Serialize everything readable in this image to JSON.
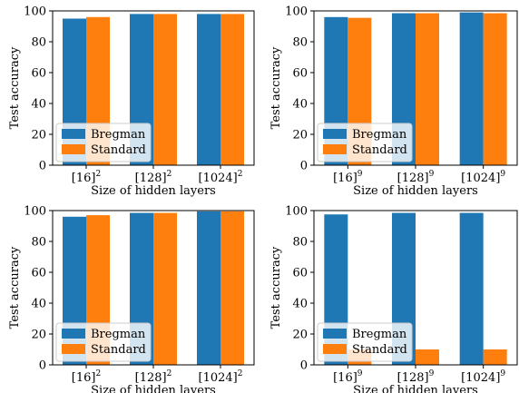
{
  "chart_data": [
    {
      "type": "bar",
      "categories": [
        [
          "[16]",
          "2"
        ],
        [
          "[128]",
          "2"
        ],
        [
          "[1024]",
          "2"
        ]
      ],
      "series": [
        {
          "name": "Bregman",
          "values": [
            95,
            98,
            98
          ]
        },
        {
          "name": "Standard",
          "values": [
            96,
            98,
            98
          ]
        }
      ],
      "xlabel": "Size of hidden layers",
      "ylabel": "Test accuracy",
      "ylim": [
        0,
        100
      ],
      "yticks": [
        "0",
        "20",
        "40",
        "60",
        "80",
        "100"
      ],
      "legend": "lower-left"
    },
    {
      "type": "bar",
      "categories": [
        [
          "[16]",
          "9"
        ],
        [
          "[128]",
          "9"
        ],
        [
          "[1024]",
          "9"
        ]
      ],
      "series": [
        {
          "name": "Bregman",
          "values": [
            96,
            98.5,
            99
          ]
        },
        {
          "name": "Standard",
          "values": [
            95.5,
            98.5,
            98.5
          ]
        }
      ],
      "xlabel": "Size of hidden layers",
      "ylabel": "Test accuracy",
      "ylim": [
        0,
        100
      ],
      "yticks": [
        "0",
        "20",
        "40",
        "60",
        "80",
        "100"
      ],
      "legend": "lower-left"
    },
    {
      "type": "bar",
      "categories": [
        [
          "[16]",
          "2"
        ],
        [
          "[128]",
          "2"
        ],
        [
          "[1024]",
          "2"
        ]
      ],
      "series": [
        {
          "name": "Bregman",
          "values": [
            96,
            98.5,
            99.5
          ]
        },
        {
          "name": "Standard",
          "values": [
            97,
            98.5,
            99.5
          ]
        }
      ],
      "xlabel": "Size of hidden layers",
      "ylabel": "Test accuracy",
      "ylim": [
        0,
        100
      ],
      "yticks": [
        "0",
        "20",
        "40",
        "60",
        "80",
        "100"
      ],
      "legend": "lower-left"
    },
    {
      "type": "bar",
      "categories": [
        [
          "[16]",
          "9"
        ],
        [
          "[128]",
          "9"
        ],
        [
          "[1024]",
          "9"
        ]
      ],
      "series": [
        {
          "name": "Bregman",
          "values": [
            97.5,
            98.5,
            98.5
          ]
        },
        {
          "name": "Standard",
          "values": [
            10,
            10,
            10
          ]
        }
      ],
      "xlabel": "Size of hidden layers",
      "ylabel": "Test accuracy",
      "ylim": [
        0,
        100
      ],
      "yticks": [
        "0",
        "20",
        "40",
        "60",
        "80",
        "100"
      ],
      "legend": "lower-left"
    }
  ],
  "colors": {
    "Bregman": "#1f77b4",
    "Standard": "#ff7f0e"
  }
}
